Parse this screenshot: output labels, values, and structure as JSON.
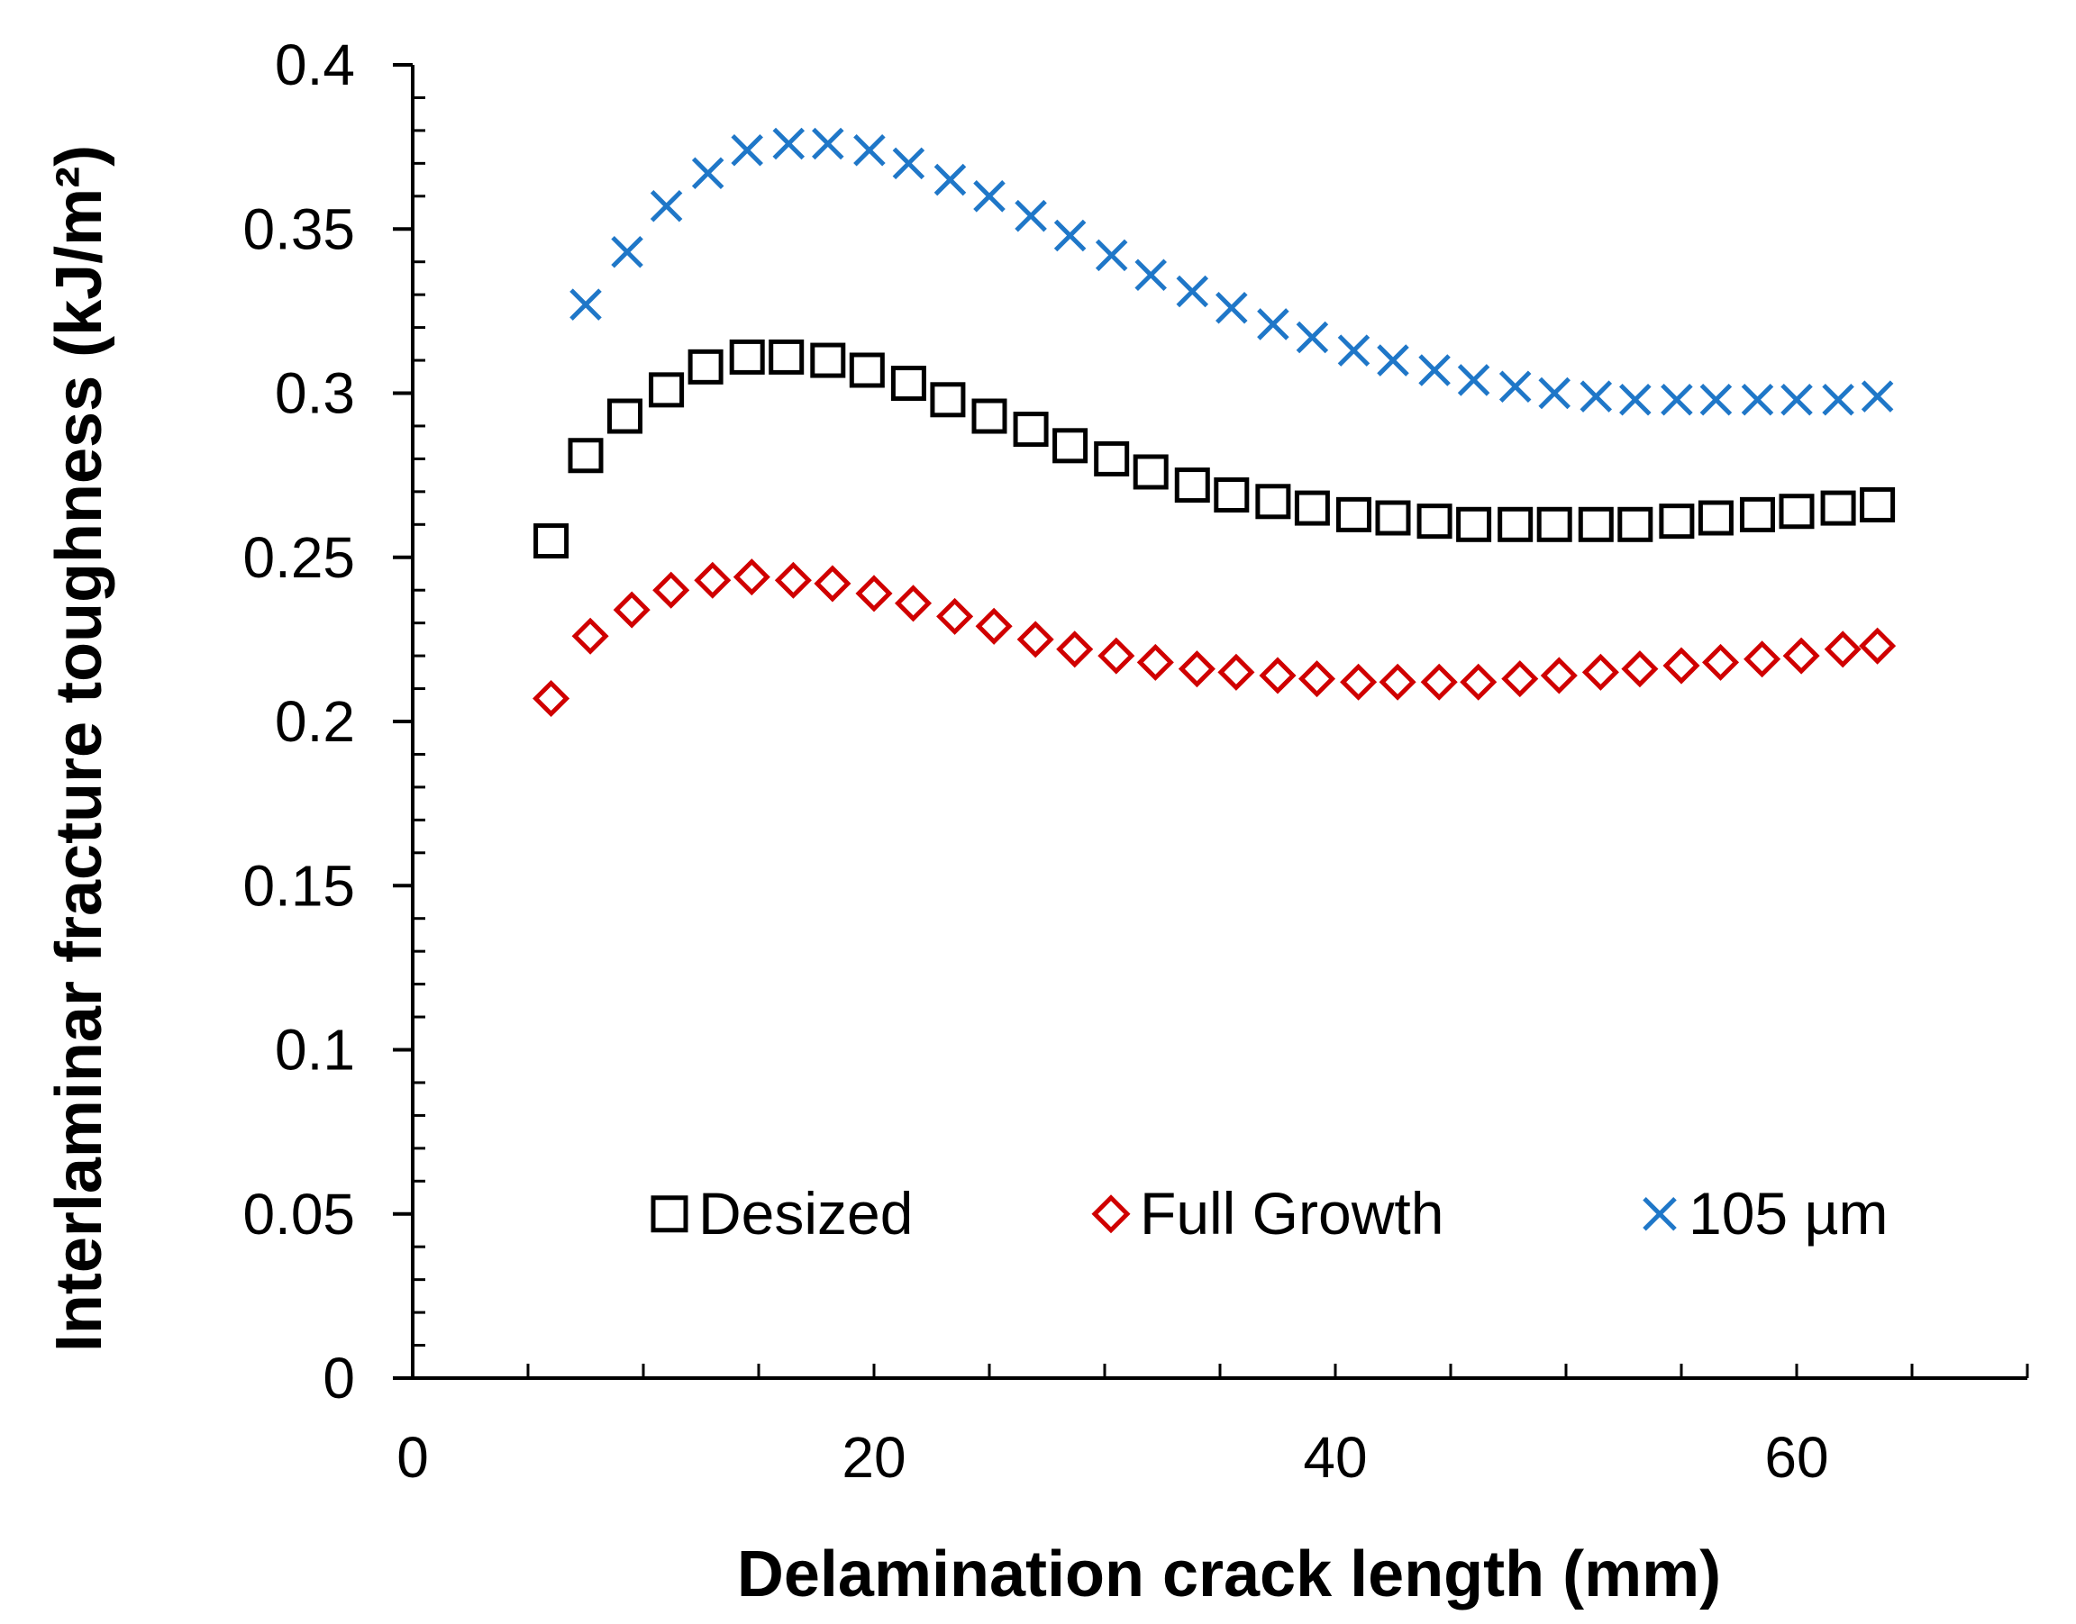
{
  "chart_data": {
    "type": "scatter",
    "title": "",
    "xlabel": "Delamination crack length (mm)",
    "ylabel": "Interlaminar fracture toughness (kJ/m²)",
    "xlim": [
      0,
      70
    ],
    "ylim": [
      0,
      0.4
    ],
    "x_ticks": [
      "0",
      "20",
      "40",
      "60"
    ],
    "x_tick_values": [
      0,
      20,
      40,
      60
    ],
    "y_ticks": [
      "0",
      "0.05",
      "0.1",
      "0.15",
      "0.2",
      "0.25",
      "0.3",
      "0.35",
      "0.4"
    ],
    "y_tick_values": [
      0,
      0.05,
      0.1,
      0.15,
      0.2,
      0.25,
      0.3,
      0.35,
      0.4
    ],
    "grid": false,
    "legend_position": "bottom-inside",
    "series": [
      {
        "name": "Desized",
        "marker": "square",
        "color": "#000000",
        "x": [
          6.0,
          7.5,
          9.2,
          11.0,
          12.7,
          14.5,
          16.2,
          18.0,
          19.7,
          21.5,
          23.2,
          25.0,
          26.8,
          28.5,
          30.3,
          32.0,
          33.8,
          35.5,
          37.3,
          39.0,
          40.8,
          42.5,
          44.3,
          46.0,
          47.8,
          49.5,
          51.3,
          53.0,
          54.8,
          56.5,
          58.3,
          60.0,
          61.8,
          63.5
        ],
        "y": [
          0.255,
          0.281,
          0.293,
          0.301,
          0.308,
          0.311,
          0.311,
          0.31,
          0.307,
          0.303,
          0.298,
          0.293,
          0.289,
          0.284,
          0.28,
          0.276,
          0.272,
          0.269,
          0.267,
          0.265,
          0.263,
          0.262,
          0.261,
          0.26,
          0.26,
          0.26,
          0.26,
          0.26,
          0.261,
          0.262,
          0.263,
          0.264,
          0.265,
          0.266
        ]
      },
      {
        "name": "Full Growth",
        "marker": "diamond",
        "color": "#d00000",
        "x": [
          6.0,
          7.7,
          9.5,
          11.2,
          13.0,
          14.7,
          16.5,
          18.2,
          20.0,
          21.7,
          23.5,
          25.2,
          27.0,
          28.7,
          30.5,
          32.2,
          34.0,
          35.7,
          37.5,
          39.2,
          41.0,
          42.7,
          44.5,
          46.2,
          48.0,
          49.7,
          51.5,
          53.2,
          55.0,
          56.7,
          58.5,
          60.2,
          62.0,
          63.5
        ],
        "y": [
          0.207,
          0.226,
          0.234,
          0.24,
          0.243,
          0.244,
          0.243,
          0.242,
          0.239,
          0.236,
          0.232,
          0.229,
          0.225,
          0.222,
          0.22,
          0.218,
          0.216,
          0.215,
          0.214,
          0.213,
          0.212,
          0.212,
          0.212,
          0.212,
          0.213,
          0.214,
          0.215,
          0.216,
          0.217,
          0.218,
          0.219,
          0.22,
          0.222,
          0.223
        ]
      },
      {
        "name": "105 µm",
        "marker": "x",
        "color": "#1f77c8",
        "x": [
          7.5,
          9.3,
          11.0,
          12.8,
          14.5,
          16.3,
          18.0,
          19.8,
          21.5,
          23.3,
          25.0,
          26.8,
          28.5,
          30.3,
          32.0,
          33.8,
          35.5,
          37.3,
          39.0,
          40.8,
          42.5,
          44.3,
          46.0,
          47.8,
          49.5,
          51.3,
          53.0,
          54.8,
          56.5,
          58.3,
          60.0,
          61.8,
          63.5
        ],
        "y": [
          0.327,
          0.343,
          0.357,
          0.367,
          0.374,
          0.376,
          0.376,
          0.374,
          0.37,
          0.365,
          0.36,
          0.354,
          0.348,
          0.342,
          0.336,
          0.331,
          0.326,
          0.321,
          0.317,
          0.313,
          0.31,
          0.307,
          0.304,
          0.302,
          0.3,
          0.299,
          0.298,
          0.298,
          0.298,
          0.298,
          0.298,
          0.298,
          0.299
        ]
      }
    ]
  }
}
